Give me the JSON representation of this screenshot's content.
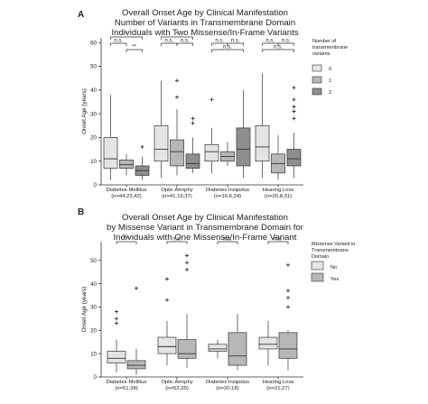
{
  "chart_data": [
    {
      "type": "box",
      "panel_label": "A",
      "title_lines": [
        "Overall Onset Age by Clinical Manifestation",
        "Number of Variants in Transmembrane Domain",
        "Individuals with Two Missense/In-Frame Variants"
      ],
      "ylabel": "Onset Age (years)",
      "ylim": [
        0,
        62
      ],
      "yticks": [
        0,
        10,
        20,
        30,
        40,
        50,
        60
      ],
      "categories": [
        "Diabetes Mellitus",
        "Optic Atrophy",
        "Diabetes Insipidus",
        "Hearing Loss"
      ],
      "category_counts": [
        "(n=44,23,42)",
        "(n=41,19,37)",
        "(n=16,6,24)",
        "(n=20,8,31)"
      ],
      "legend": {
        "title_lines": [
          "Number of",
          "transmembrane",
          "variants"
        ],
        "placement": "right"
      },
      "series": [
        {
          "name": "0",
          "color": "#e4e4e4",
          "boxes": [
            {
              "min": 2,
              "q1": 7,
              "median": 11,
              "q3": 20,
              "max": 38,
              "outliers": []
            },
            {
              "min": 3,
              "q1": 10,
              "median": 15,
              "q3": 25,
              "max": 44,
              "outliers": []
            },
            {
              "min": 5,
              "q1": 10,
              "median": 14,
              "q3": 17,
              "max": 24,
              "outliers": [
                36
              ]
            },
            {
              "min": 3,
              "q1": 10,
              "median": 16,
              "q3": 25,
              "max": 47,
              "outliers": []
            }
          ]
        },
        {
          "name": "1",
          "color": "#b7b7b7",
          "boxes": [
            {
              "min": 4,
              "q1": 7,
              "median": 8.5,
              "q3": 10.5,
              "max": 13,
              "outliers": []
            },
            {
              "min": 4,
              "q1": 8,
              "median": 14,
              "q3": 19,
              "max": 32,
              "outliers": [
                37,
                44
              ]
            },
            {
              "min": 8,
              "q1": 10,
              "median": 12,
              "q3": 14,
              "max": 18,
              "outliers": []
            },
            {
              "min": 2,
              "q1": 5,
              "median": 9,
              "q3": 13,
              "max": 21,
              "outliers": []
            }
          ]
        },
        {
          "name": "2",
          "color": "#8e8e8e",
          "boxes": [
            {
              "min": 2,
              "q1": 4,
              "median": 6,
              "q3": 8,
              "max": 12,
              "outliers": [
                16
              ]
            },
            {
              "min": 5,
              "q1": 7,
              "median": 9,
              "q3": 13,
              "max": 20,
              "outliers": [
                26,
                28
              ]
            },
            {
              "min": 3,
              "q1": 8,
              "median": 15,
              "q3": 24,
              "max": 40,
              "outliers": []
            },
            {
              "min": 3,
              "q1": 8,
              "median": 11,
              "q3": 15,
              "max": 22,
              "outliers": [
                28,
                31,
                33,
                36,
                41
              ]
            }
          ]
        }
      ],
      "brackets": [
        {
          "category": 0,
          "from": 0,
          "to": 2,
          "label": "*",
          "level": 2
        },
        {
          "category": 0,
          "from": 1,
          "to": 2,
          "label": "**",
          "level": 1
        },
        {
          "category": 0,
          "from": 0,
          "to": 1,
          "label": "n.s.",
          "level": 0
        },
        {
          "category": 1,
          "from": 0,
          "to": 2,
          "label": "*",
          "level": 2
        },
        {
          "category": 1,
          "from": 0,
          "to": 1,
          "label": "n.s.",
          "level": 0
        },
        {
          "category": 1,
          "from": 1,
          "to": 2,
          "label": "n.s.",
          "level": 0
        },
        {
          "category": 2,
          "from": 0,
          "to": 2,
          "label": "n.s.",
          "level": 1
        },
        {
          "category": 2,
          "from": 0,
          "to": 1,
          "label": "n.s.",
          "level": 0
        },
        {
          "category": 2,
          "from": 1,
          "to": 2,
          "label": "n.s.",
          "level": 0
        },
        {
          "category": 3,
          "from": 0,
          "to": 2,
          "label": "n.s.",
          "level": 1
        },
        {
          "category": 3,
          "from": 0,
          "to": 1,
          "label": "n.s.",
          "level": 0
        },
        {
          "category": 3,
          "from": 1,
          "to": 2,
          "label": "n.s.",
          "level": 0
        }
      ]
    },
    {
      "type": "box",
      "panel_label": "B",
      "title_lines": [
        "Overall Onset Age by Clinical Manifestation",
        "by Missense Variant in Transmembrane Domain for",
        "Individuals with One Missense/In-Frame Variant"
      ],
      "ylabel": "Onset Age (years)",
      "ylim": [
        0,
        58
      ],
      "yticks": [
        0,
        10,
        20,
        30,
        40,
        50
      ],
      "categories": [
        "Diabetes Mellitus",
        "Optic Atrophy",
        "Diabetes Insipidus",
        "Hearing Loss"
      ],
      "category_counts": [
        "(n=51,38)",
        "(n=52,35)",
        "(n=20,18)",
        "(n=21,27)"
      ],
      "legend": {
        "title_lines": [
          "Missense Variant in",
          "Transmembrane",
          "Domain"
        ],
        "placement": "right"
      },
      "series": [
        {
          "name": "No",
          "color": "#e4e4e4",
          "boxes": [
            {
              "min": 2,
              "q1": 6,
              "median": 8,
              "q3": 11,
              "max": 16,
              "outliers": [
                23,
                25,
                28
              ]
            },
            {
              "min": 5,
              "q1": 10,
              "median": 13,
              "q3": 17,
              "max": 24,
              "outliers": [
                33,
                42
              ]
            },
            {
              "min": 8,
              "q1": 11,
              "median": 12,
              "q3": 14,
              "max": 16,
              "outliers": []
            },
            {
              "min": 5,
              "q1": 12,
              "median": 14,
              "q3": 17,
              "max": 24,
              "outliers": []
            }
          ]
        },
        {
          "name": "Yes",
          "color": "#b7b7b7",
          "boxes": [
            {
              "min": 1,
              "q1": 3.5,
              "median": 5,
              "q3": 7,
              "max": 12,
              "outliers": [
                38
              ]
            },
            {
              "min": 4,
              "q1": 8,
              "median": 10,
              "q3": 16,
              "max": 27,
              "outliers": [
                46,
                49,
                52
              ]
            },
            {
              "min": 3,
              "q1": 5,
              "median": 9,
              "q3": 19,
              "max": 27,
              "outliers": []
            },
            {
              "min": 3,
              "q1": 8,
              "median": 12,
              "q3": 19,
              "max": 20,
              "outliers": [
                30,
                34,
                37,
                48
              ]
            }
          ]
        }
      ],
      "brackets": [
        {
          "category": 0,
          "from": 0,
          "to": 1,
          "label": "***",
          "level": 0
        },
        {
          "category": 1,
          "from": 0,
          "to": 1,
          "label": "n.s.",
          "level": 0
        },
        {
          "category": 2,
          "from": 0,
          "to": 1,
          "label": "n.s.",
          "level": 0
        },
        {
          "category": 3,
          "from": 0,
          "to": 1,
          "label": "n.s.",
          "level": 0
        }
      ]
    }
  ]
}
